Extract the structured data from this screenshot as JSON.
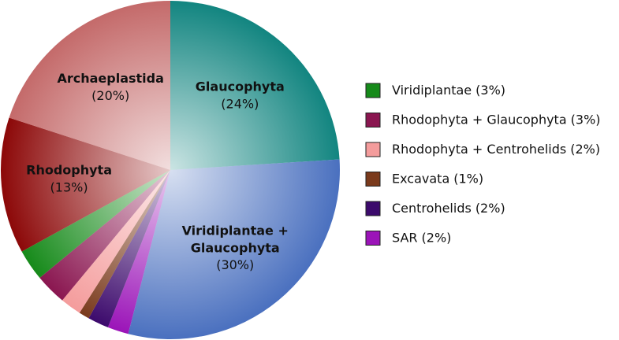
{
  "chart_data": {
    "type": "pie",
    "categories": [
      "Glaucophyta",
      "Viridiplantae + Glaucophyta",
      "SAR",
      "Centrohelids",
      "Excavata",
      "Rhodophyta + Centrohelids",
      "Rhodophyta + Glaucophyta",
      "Viridiplantae",
      "Rhodophyta",
      "Archaeplastida"
    ],
    "values": [
      24,
      30,
      2,
      2,
      1,
      2,
      3,
      3,
      13,
      20
    ],
    "value_labels": [
      "(24%)",
      "(30%)",
      "(2%)",
      "(2%)",
      "(1%)",
      "(2%)",
      "(3%)",
      "(3%)",
      "(13%)",
      "(20%)"
    ],
    "colors": [
      "#128580",
      "#4a70bf",
      "#9b14b8",
      "#3c0a6c",
      "#7a3a1c",
      "#f49c9c",
      "#8a1650",
      "#168a1a",
      "#8c0808",
      "#c46a6a"
    ],
    "legend": "right"
  }
}
